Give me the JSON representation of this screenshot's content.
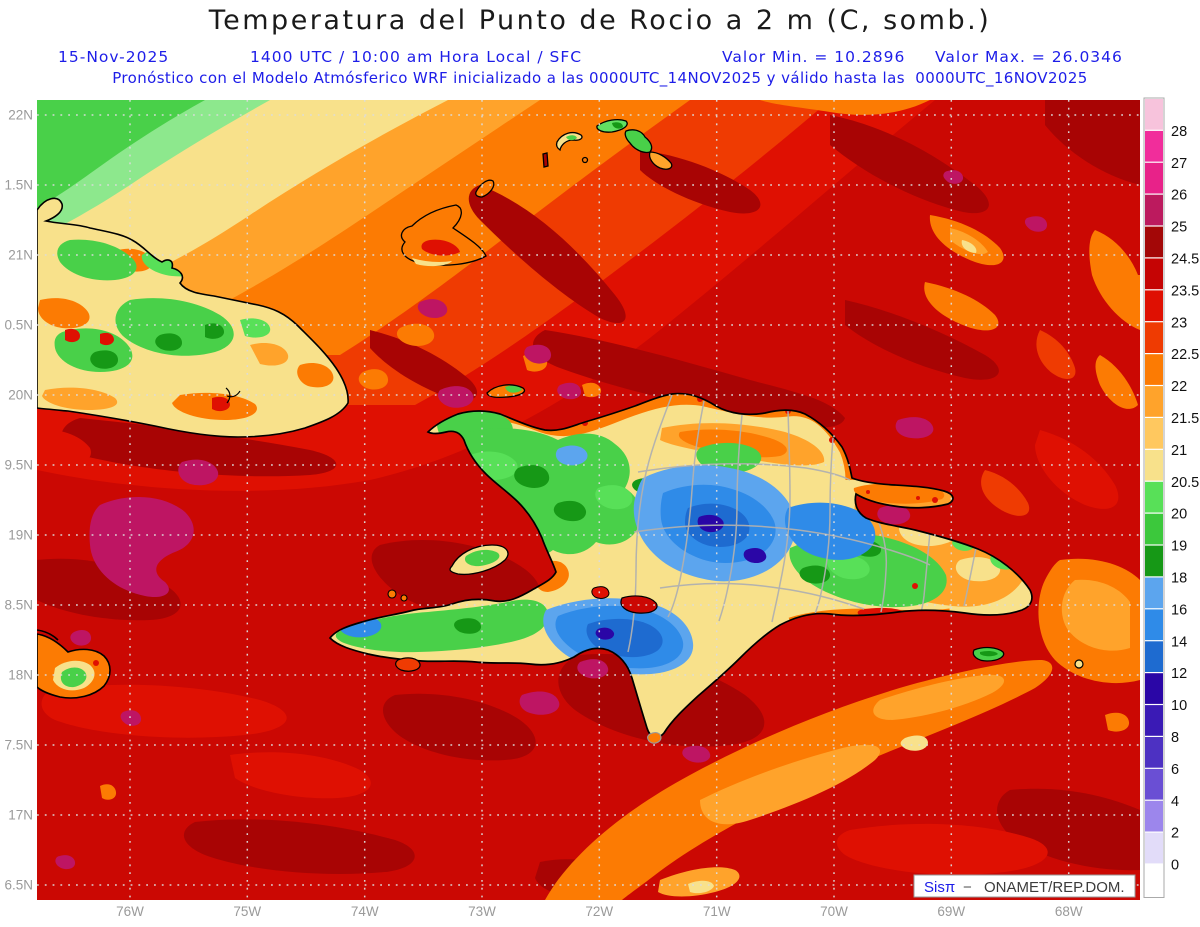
{
  "header": {
    "title": "Temperatura del Punto de Rocio a 2 m (C, somb.)",
    "date": "15-Nov-2025",
    "valid_time": "1400 UTC / 10:00 am Hora Local / SFC",
    "valor_min": "Valor Min. = 10.2896",
    "valor_max": "Valor Max. = 26.0346",
    "forecast_line": "Pronóstico con el Modelo Atmósferico WRF inicializado a las 0000UTC_14NOV2025 y válido hasta las  0000UTC_16NOV2025",
    "text_color": "#1d1de8"
  },
  "axes": {
    "lat_labels": [
      "22N",
      "1.5N",
      "21N",
      "0.5N",
      "20N",
      "9.5N",
      "19N",
      "8.5N",
      "18N",
      "7.5N",
      "17N",
      "6.5N"
    ],
    "lon_labels": [
      "76W",
      "75W",
      "74W",
      "73W",
      "72W",
      "71W",
      "70W",
      "69W",
      "68W"
    ]
  },
  "colorbar": {
    "tick_labels": [
      "28",
      "27",
      "26",
      "25",
      "24.5",
      "23.5",
      "23",
      "22.5",
      "22",
      "21.5",
      "21",
      "20.5",
      "20",
      "19",
      "18",
      "16",
      "14",
      "12",
      "10",
      "8",
      "6",
      "4",
      "2",
      "0"
    ],
    "segment_colors_top_to_bottom": [
      "#F7C3DC",
      "#F12D9B",
      "#E82289",
      "#BC1A5E",
      "#A30707",
      "#C50404",
      "#DF1002",
      "#EF3B02",
      "#FC7B03",
      "#FFA32B",
      "#FFC85F",
      "#F8E18B",
      "#58E058",
      "#3CC83C",
      "#169816",
      "#5CA5EE",
      "#2F8BE8",
      "#1E6BD0",
      "#2A06A6",
      "#3A1AB5",
      "#4D31C2",
      "#6A4FD4",
      "#9C86EC",
      "#E2DCF9",
      "#FFFFFF"
    ]
  },
  "attribution": {
    "brand": "Sisπ",
    "separator": "−",
    "org": "ONAMET/REP.DOM."
  },
  "chart_data": {
    "type": "heatmap",
    "title": "Temperatura del Punto de Rocio a 2 m (C, somb.)",
    "variable": "Dew point temperature at 2 m",
    "units": "C",
    "value_min": 10.2896,
    "value_max": 26.0346,
    "model": "WRF",
    "initialized": "0000UTC_14NOV2025",
    "valid_until": "0000UTC_16NOV2025",
    "valid_at": "15-Nov-2025 1400 UTC / 10:00 am Hora Local / SFC",
    "level": "SFC",
    "region": {
      "lon_deg_west": [
        76.8,
        67.4
      ],
      "lat_deg_north": [
        16.4,
        22.1
      ]
    },
    "colorbar_levels": [
      0,
      2,
      4,
      6,
      8,
      10,
      12,
      14,
      16,
      18,
      19,
      20,
      20.5,
      21,
      21.5,
      22,
      22.5,
      23,
      23.5,
      24.5,
      25,
      26,
      27,
      28
    ],
    "legend_position": "right",
    "grid": "dotted lat/lon graticule every 0.5 deg lat / 1 deg lon"
  }
}
